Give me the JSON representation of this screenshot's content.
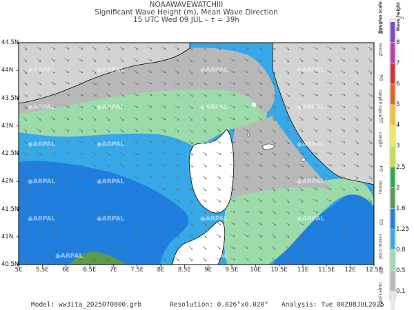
{
  "header": {
    "line1": "NOAAWAVEWATCHIII",
    "line2": "Significant Wave Height (m), Mean Wave Direction",
    "line3": "15 UTC Wed 09 JUL   –   τ = 39h"
  },
  "watermark": "ARPAL",
  "axes": {
    "lat_labels": [
      "44.5N",
      "44N",
      "43.5N",
      "43N",
      "42.5N",
      "42N",
      "41.5N",
      "41N",
      "40.5N"
    ],
    "lon_labels": [
      "5E",
      "5.5E",
      "6E",
      "6.5E",
      "7E",
      "7.5E",
      "8E",
      "8.5E",
      "9E",
      "9.5E",
      "10E",
      "10.5E",
      "11E",
      "11.5E",
      "12E",
      "12.5E"
    ]
  },
  "colorbar": {
    "title": "Wave height",
    "unit": "m",
    "scale_title": "Douglas scale",
    "levels": [
      "8",
      "7",
      "6",
      "5",
      "4",
      "3",
      "2.5",
      "2",
      "1.6",
      "1.25",
      "0.8",
      "0.5",
      "0.1"
    ],
    "douglas_codes": [
      "D7",
      "D6",
      "D5",
      "D4",
      "D3",
      "D2"
    ],
    "douglas_labels": [
      "grosso",
      "molto agitato",
      "agitato",
      "mosso",
      "poco mosso",
      "quasi calmo"
    ]
  },
  "footer": {
    "model": "Model: ww3ita_2025070800.grb",
    "resolution": "Resolution: 0.026°x0.020°",
    "analysis": "Analysis: Tue 00Z08JUL2025"
  },
  "colors": {
    "land": "#d3d3d3",
    "band_0_1_0_5": "#b8b8b8",
    "band_0_5_0_8": "#9bdcaa",
    "band_0_8_1_25": "#37a8e8",
    "band_1_25_1_6": "#1e7fe0",
    "band_1_6_2": "#5d9a4a"
  }
}
